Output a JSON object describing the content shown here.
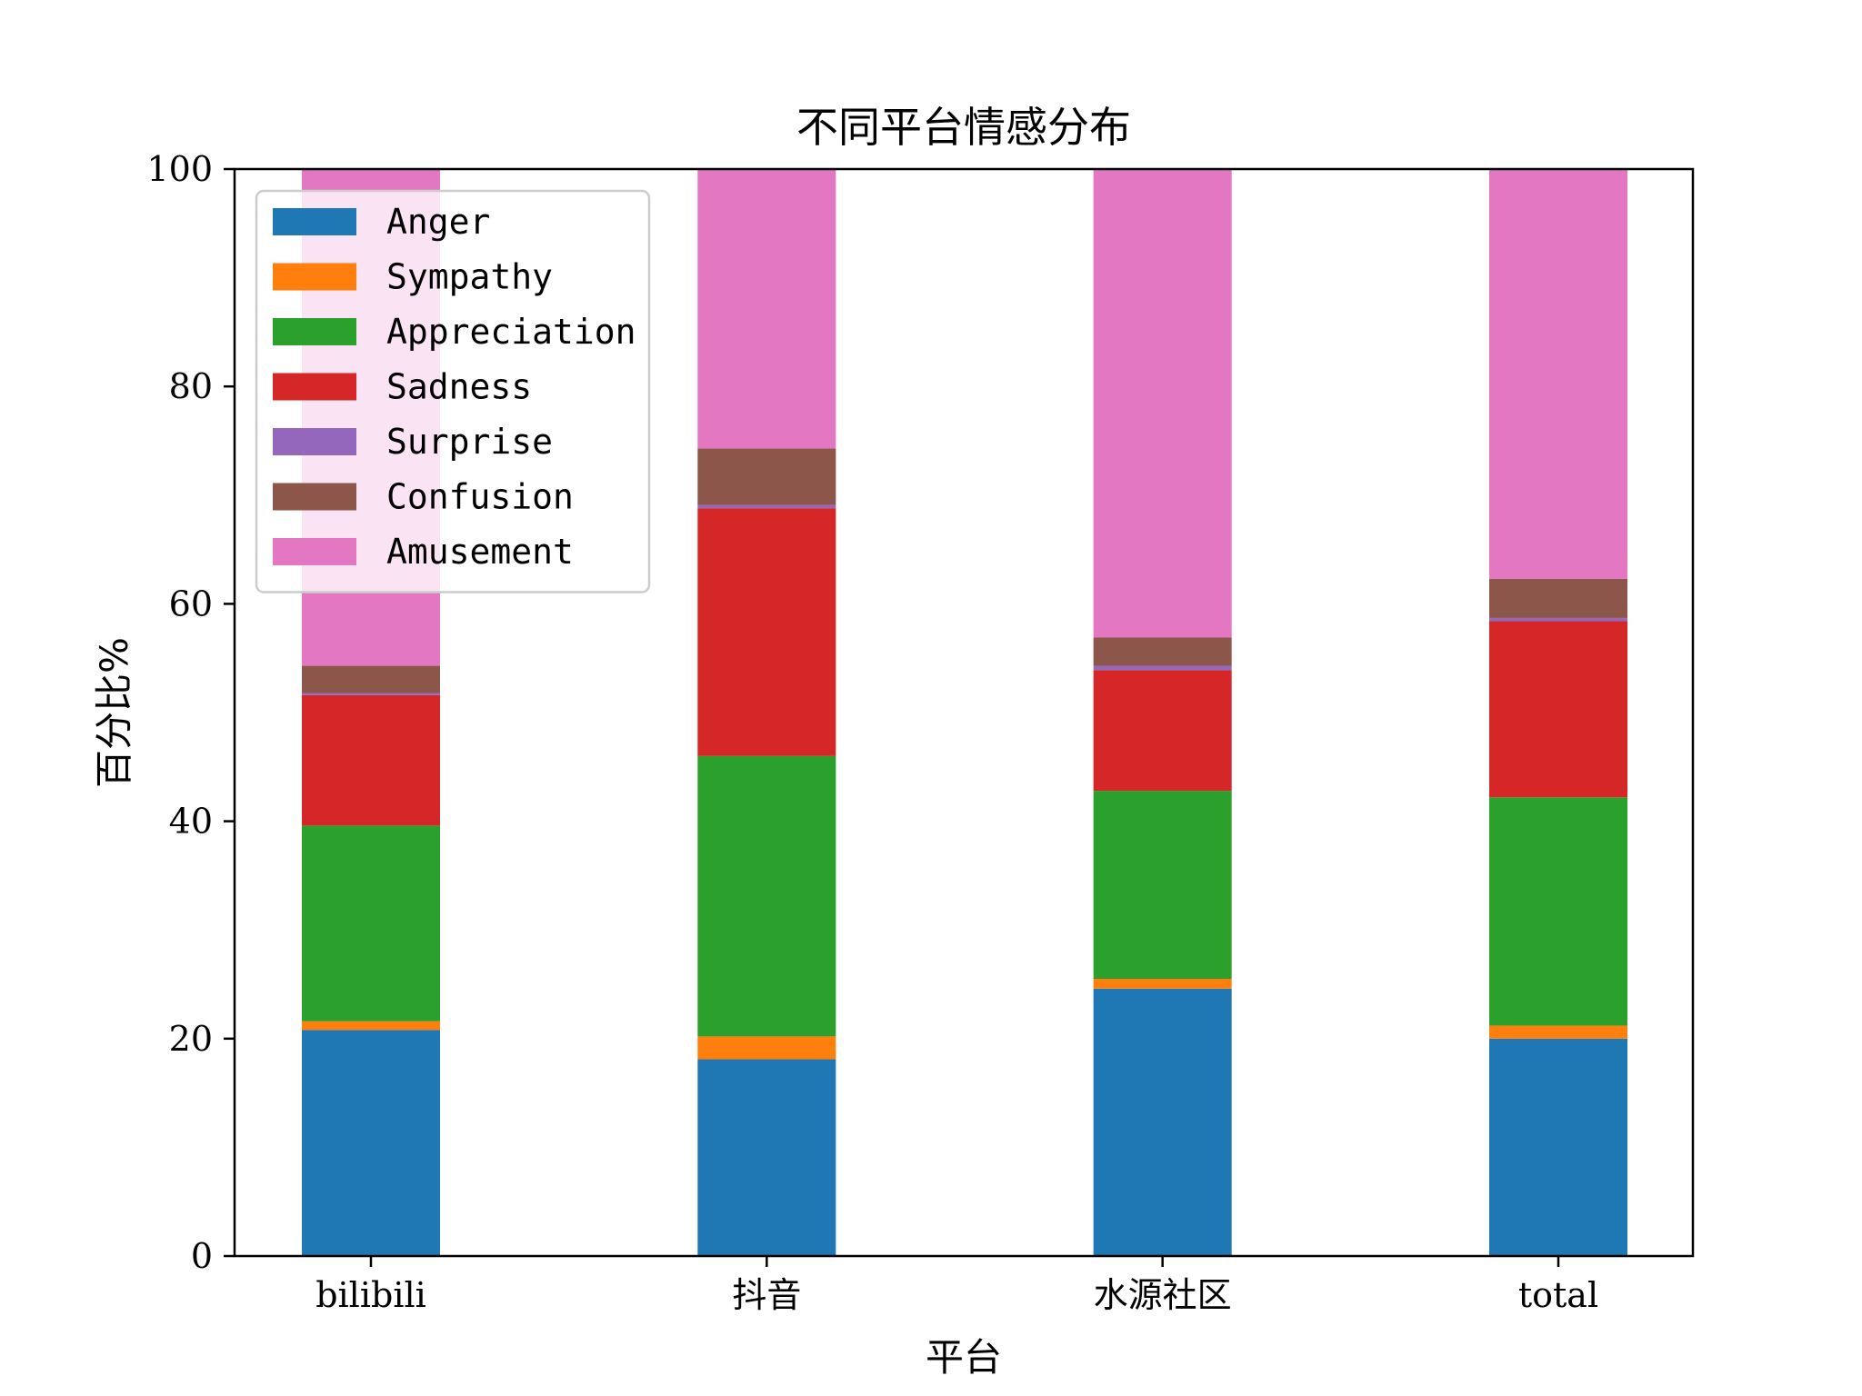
{
  "chart_data": {
    "type": "bar",
    "stacked": true,
    "title": "不同平台情感分布",
    "xlabel": "平台",
    "ylabel": "百分比%",
    "ylim": [
      0,
      100
    ],
    "yticks": [
      0,
      20,
      40,
      60,
      80,
      100
    ],
    "categories": [
      "bilibili",
      "抖音",
      "水源社区",
      "total"
    ],
    "legend_position": "upper-left",
    "grid": false,
    "series": [
      {
        "name": "Anger",
        "color": "#1f77b4",
        "values": [
          20.8,
          18.1,
          24.6,
          20.0
        ]
      },
      {
        "name": "Sympathy",
        "color": "#ff7f0e",
        "values": [
          0.8,
          2.1,
          0.9,
          1.2
        ]
      },
      {
        "name": "Appreciation",
        "color": "#2ca02c",
        "values": [
          18.0,
          25.8,
          17.3,
          21.0
        ]
      },
      {
        "name": "Sadness",
        "color": "#d62728",
        "values": [
          12.0,
          22.8,
          11.1,
          16.2
        ]
      },
      {
        "name": "Surprise",
        "color": "#9467bd",
        "values": [
          0.2,
          0.3,
          0.4,
          0.3
        ]
      },
      {
        "name": "Confusion",
        "color": "#8c564b",
        "values": [
          2.5,
          5.2,
          2.6,
          3.6
        ]
      },
      {
        "name": "Amusement",
        "color": "#e377c2",
        "values": [
          45.7,
          25.7,
          43.1,
          37.7
        ]
      }
    ]
  }
}
